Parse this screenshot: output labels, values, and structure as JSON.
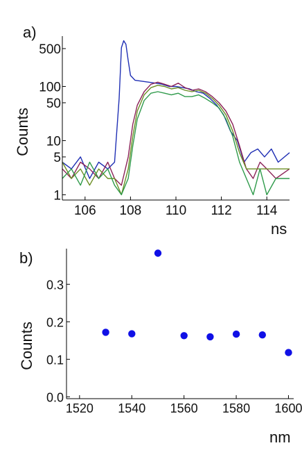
{
  "chart_data": [
    {
      "panel_label": "a)",
      "type": "line",
      "title": "",
      "xlabel": "ns",
      "ylabel": "Counts",
      "xlim": [
        105,
        115
      ],
      "ylim": [
        0.8,
        850
      ],
      "yscale": "log",
      "grid": false,
      "x_ticks": [
        "106",
        "108",
        "110",
        "112",
        "114"
      ],
      "y_ticks": [
        "1",
        "5",
        "10",
        "50",
        "100",
        "500"
      ],
      "series": [
        {
          "color": "#1f2fb4",
          "x": [
            105,
            105.4,
            105.8,
            106.2,
            106.6,
            107,
            107.3,
            107.5,
            107.6,
            107.7,
            107.8,
            107.9,
            108,
            108.2,
            108.5,
            108.8,
            109.1,
            109.4,
            109.7,
            110,
            110.3,
            110.6,
            110.9,
            111.2,
            111.5,
            111.8,
            112.1,
            112.4,
            112.7,
            113,
            113.3,
            113.6,
            113.9,
            114.2,
            114.5,
            115
          ],
          "y": [
            4,
            3,
            5,
            2,
            4,
            3,
            4,
            60,
            520,
            700,
            600,
            300,
            160,
            130,
            125,
            120,
            115,
            110,
            100,
            100,
            95,
            90,
            80,
            75,
            60,
            45,
            30,
            15,
            10,
            4,
            6,
            7,
            5,
            7,
            4,
            6
          ]
        },
        {
          "color": "#8b2257",
          "x": [
            105,
            105.4,
            105.8,
            106.2,
            106.6,
            107,
            107.3,
            107.6,
            107.9,
            108.1,
            108.3,
            108.6,
            108.9,
            109.2,
            109.5,
            109.8,
            110.1,
            110.4,
            110.7,
            111,
            111.3,
            111.6,
            111.9,
            112.2,
            112.5,
            112.8,
            113.1,
            113.4,
            113.7,
            114,
            114.4,
            115
          ],
          "y": [
            3,
            2,
            4,
            3,
            2,
            4,
            2,
            1.5,
            5,
            20,
            45,
            80,
            110,
            120,
            110,
            100,
            115,
            95,
            85,
            90,
            80,
            65,
            50,
            35,
            20,
            8,
            3,
            2,
            4,
            3,
            2,
            3
          ]
        },
        {
          "color": "#6b8e23",
          "x": [
            105,
            105.4,
            105.8,
            106.2,
            106.6,
            107,
            107.3,
            107.6,
            107.9,
            108.1,
            108.3,
            108.6,
            108.9,
            109.2,
            109.5,
            109.8,
            110.1,
            110.4,
            110.7,
            111,
            111.3,
            111.6,
            111.9,
            112.2,
            112.5,
            112.8,
            113.1,
            113.4,
            113.7,
            114,
            114.4,
            115
          ],
          "y": [
            4,
            2,
            3,
            1.5,
            3,
            2,
            2,
            1,
            3,
            12,
            35,
            70,
            95,
            105,
            100,
            90,
            95,
            85,
            80,
            85,
            75,
            60,
            45,
            30,
            15,
            6,
            3,
            3,
            3,
            3,
            3,
            3
          ]
        },
        {
          "color": "#2e9a4a",
          "x": [
            105,
            105.4,
            105.8,
            106.2,
            106.6,
            107,
            107.3,
            107.6,
            107.9,
            108.1,
            108.3,
            108.6,
            108.9,
            109.2,
            109.5,
            109.8,
            110.1,
            110.4,
            110.7,
            111,
            111.3,
            111.6,
            111.9,
            112.2,
            112.5,
            112.8,
            113.1,
            113.4,
            113.7,
            114,
            114.4,
            115
          ],
          "y": [
            2,
            3,
            1.5,
            4,
            2,
            3,
            1.5,
            1,
            2,
            8,
            25,
            55,
            75,
            80,
            75,
            70,
            75,
            65,
            65,
            70,
            60,
            50,
            40,
            25,
            12,
            4,
            2,
            1,
            3,
            1,
            2,
            2
          ]
        }
      ]
    },
    {
      "panel_label": "b)",
      "type": "scatter",
      "title": "",
      "xlabel": "nm",
      "ylabel": "Counts",
      "xlim": [
        1515,
        1602
      ],
      "ylim": [
        -0.005,
        0.395
      ],
      "grid": false,
      "x_ticks": [
        "1520",
        "1540",
        "1560",
        "1580",
        "1600"
      ],
      "y_ticks": [
        "0.0",
        "0.1",
        "0.2",
        "0.3"
      ],
      "marker_color": "#1010e6",
      "x": [
        1530,
        1540,
        1550,
        1560,
        1570,
        1580,
        1590,
        1600
      ],
      "y": [
        0.172,
        0.168,
        0.383,
        0.163,
        0.16,
        0.167,
        0.165,
        0.118
      ]
    }
  ]
}
